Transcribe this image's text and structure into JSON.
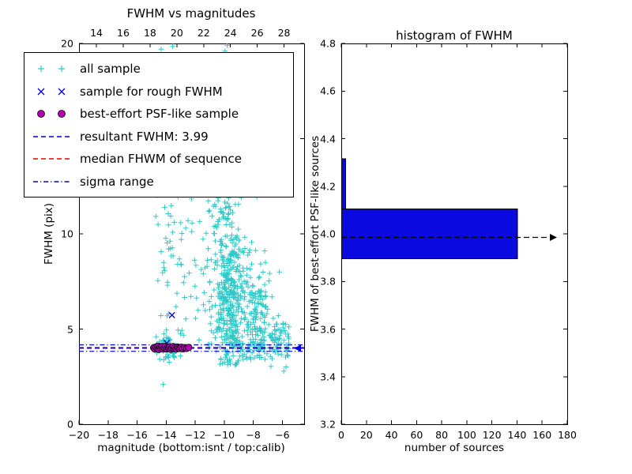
{
  "colors": {
    "cyan": "#2fc9c9",
    "blue": "#0000dd",
    "magenta": "#b400b4",
    "red": "#e80000",
    "bar": "#0a0ae0",
    "black": "#000000"
  },
  "legend": {
    "items": [
      {
        "type": "plus",
        "color": "cyan",
        "label": "all sample"
      },
      {
        "type": "x",
        "color": "blue",
        "label": "sample for rough FWHM"
      },
      {
        "type": "circle",
        "color": "magenta",
        "label": "best-effort PSF-like sample"
      },
      {
        "type": "dashed",
        "color": "blue",
        "label": "resultant FWHM: 3.99"
      },
      {
        "type": "dashed",
        "color": "red",
        "label": "median FHWM of sequence"
      },
      {
        "type": "dashdot",
        "color": "blue",
        "label": "sigma range"
      }
    ]
  },
  "chart_data": [
    {
      "type": "scatter",
      "title": "FWHM vs magnitudes",
      "xlabel": "magnitude (bottom:isnt / top:calib)",
      "ylabel": "FWHM (pix)",
      "xlim": [
        -20,
        -4.5
      ],
      "ylim": [
        0,
        20
      ],
      "top_xlim": [
        12.7,
        29.5
      ],
      "x_ticks": {
        "values": [
          -20,
          -18,
          -16,
          -14,
          -12,
          -10,
          -8,
          -6
        ],
        "labels": [
          "−20",
          "−18",
          "−16",
          "−14",
          "−12",
          "−10",
          "−8",
          "−6"
        ]
      },
      "top_x_ticks": {
        "values": [
          14,
          16,
          18,
          20,
          22,
          24,
          26,
          28
        ],
        "labels": [
          "14",
          "16",
          "18",
          "20",
          "22",
          "24",
          "26",
          "28"
        ]
      },
      "y_ticks": {
        "values": [
          0,
          5,
          10,
          15,
          20
        ],
        "labels": [
          "0",
          "5",
          "10",
          "15",
          "20"
        ]
      },
      "series": [
        {
          "name": "all sample",
          "marker": "plus",
          "color": "cyan",
          "clusters": [
            {
              "dist": "normal",
              "cx": -13.9,
              "sx": 0.45,
              "cy": 4.15,
              "sy": 0.45,
              "n": 55
            },
            {
              "dist": "xnormal_yuniform",
              "cx": -13.8,
              "sx": 0.45,
              "ylo": 4.5,
              "yhi": 12.5,
              "n": 40
            },
            {
              "dist": "uniform",
              "xlo": -13.0,
              "xhi": -10.8,
              "ylo": 4.2,
              "yhi": 12.0,
              "n": 40
            },
            {
              "dist": "normal",
              "cx": -9.6,
              "sx": 0.5,
              "cy": 6.3,
              "sy": 1.7,
              "n": 300,
              "ymin": 3.1
            },
            {
              "dist": "xnormal_yuniform",
              "cx": -9.6,
              "sx": 0.65,
              "ylo": 8.5,
              "yhi": 17.5,
              "n": 150
            },
            {
              "dist": "normal",
              "cx": -7.9,
              "sx": 0.5,
              "cy": 5.8,
              "sy": 1.5,
              "n": 150,
              "ymin": 3.4
            },
            {
              "dist": "xuniform_ynormal",
              "xlo": -7.6,
              "xhi": -5.5,
              "cy": 4.4,
              "sy": 0.6,
              "n": 70
            },
            {
              "dist": "xuniform_ynormal",
              "xlo": -11.3,
              "xhi": -6.0,
              "cy": 4.15,
              "sy": 0.3,
              "n": 55
            },
            {
              "dist": "uniform",
              "xlo": -12.6,
              "xhi": -8.8,
              "ylo": 12.5,
              "yhi": 18.0,
              "n": 22
            },
            {
              "dist": "xnormal_yuniform",
              "cx": -10.3,
              "sx": 0.3,
              "ylo": 5.0,
              "yhi": 15.0,
              "n": 60
            }
          ],
          "points": [
            [
              -14.2,
              2.1
            ],
            [
              -14.35,
              19.7
            ],
            [
              -13.55,
              19.85
            ],
            [
              -9.95,
              19.6
            ],
            [
              -9.8,
              19.9
            ],
            [
              -6.2,
              8.0
            ]
          ]
        },
        {
          "name": "sample for rough FWHM",
          "marker": "x",
          "color": "blue",
          "points": [
            [
              -13.6,
              5.73
            ],
            [
              -13.96,
              4.27
            ],
            [
              -14.5,
              4.12
            ]
          ]
        },
        {
          "name": "best-effort PSF-like sample",
          "marker": "circle",
          "color": "magenta",
          "points": [
            [
              -14.85,
              4.02
            ],
            [
              -14.78,
              3.96
            ],
            [
              -14.7,
              4.05
            ],
            [
              -14.62,
              3.99
            ],
            [
              -14.55,
              4.1
            ],
            [
              -14.5,
              3.93
            ],
            [
              -14.42,
              4.04
            ],
            [
              -14.35,
              3.98
            ],
            [
              -14.28,
              4.07
            ],
            [
              -14.2,
              3.95
            ],
            [
              -14.12,
              4.02
            ],
            [
              -14.05,
              4.09
            ],
            [
              -13.98,
              3.96
            ],
            [
              -13.9,
              4.03
            ],
            [
              -13.82,
              3.99
            ],
            [
              -13.75,
              4.06
            ],
            [
              -13.68,
              3.94
            ],
            [
              -13.6,
              4.01
            ],
            [
              -13.52,
              4.08
            ],
            [
              -13.45,
              3.97
            ],
            [
              -13.38,
              4.03
            ],
            [
              -13.3,
              3.95
            ],
            [
              -13.22,
              4.05
            ],
            [
              -13.15,
              4.0
            ],
            [
              -13.05,
              3.98
            ],
            [
              -12.95,
              4.04
            ],
            [
              -12.85,
              3.96
            ],
            [
              -12.72,
              4.02
            ],
            [
              -12.58,
              3.99
            ],
            [
              -12.45,
              4.03
            ]
          ]
        }
      ],
      "lines": [
        {
          "name": "median-fhwm-line",
          "y": 4.03,
          "style": "dashed",
          "color": "red"
        },
        {
          "name": "resultant-fwhm-line",
          "y": 3.99,
          "style": "dashed",
          "color": "blue",
          "arrow": "left"
        },
        {
          "name": "sigma-range-upper",
          "y": 4.17,
          "style": "dashdot",
          "color": "blue"
        },
        {
          "name": "sigma-range-lower",
          "y": 3.83,
          "style": "dashdot",
          "color": "blue"
        }
      ]
    },
    {
      "type": "bar",
      "orientation": "horizontal",
      "title": "histogram of FWHM",
      "xlabel": "number of sources",
      "ylabel": "FWHM of best-effort PSF-like sources",
      "xlim": [
        0,
        180
      ],
      "ylim": [
        3.2,
        4.8
      ],
      "x_ticks": {
        "values": [
          0,
          20,
          40,
          60,
          80,
          100,
          120,
          140,
          160,
          180
        ],
        "labels": [
          "0",
          "20",
          "40",
          "60",
          "80",
          "100",
          "120",
          "140",
          "160",
          "180"
        ]
      },
      "y_ticks": {
        "values": [
          3.2,
          3.4,
          3.6,
          3.8,
          4.0,
          4.2,
          4.4,
          4.6,
          4.8
        ],
        "labels": [
          "3.2",
          "3.4",
          "3.6",
          "3.8",
          "4.0",
          "4.2",
          "4.4",
          "4.6",
          "4.8"
        ]
      },
      "bars": [
        {
          "from": 3.895,
          "to": 4.105,
          "count": 140
        },
        {
          "from": 4.105,
          "to": 4.315,
          "count": 3
        }
      ],
      "lines": [
        {
          "name": "resultant-fwhm-line",
          "y": 3.985,
          "style": "dashed",
          "color": "black",
          "arrow": "right"
        }
      ]
    }
  ]
}
